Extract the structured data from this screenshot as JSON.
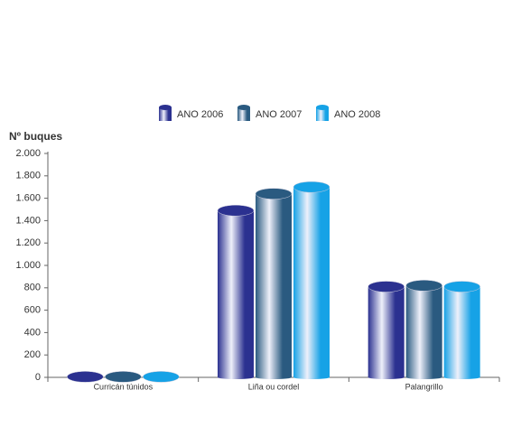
{
  "chart_data": {
    "type": "bar",
    "y_label": "Nº buques",
    "categories": [
      "Curricán túnidos",
      "Liña ou cordel",
      "Palangrillo"
    ],
    "series": [
      {
        "name": "ANO 2006",
        "color": "#2b3190",
        "values": [
          5,
          1490,
          810
        ]
      },
      {
        "name": "ANO 2007",
        "color": "#2a5a80",
        "values": [
          5,
          1640,
          820
        ]
      },
      {
        "name": "ANO 2008",
        "color": "#16a2e6",
        "values": [
          5,
          1700,
          810
        ]
      }
    ],
    "ylim": [
      0,
      2000
    ],
    "yticks": [
      0,
      200,
      400,
      600,
      800,
      {
        "value": 1000,
        "label": "1.000"
      },
      {
        "value": 1200,
        "label": "1.200"
      },
      {
        "value": 1400,
        "label": "1.400"
      },
      {
        "value": 1600,
        "label": "1.600"
      },
      {
        "value": 1800,
        "label": "1.800"
      },
      {
        "value": 2000,
        "label": "2.000"
      }
    ],
    "legend": "top"
  }
}
